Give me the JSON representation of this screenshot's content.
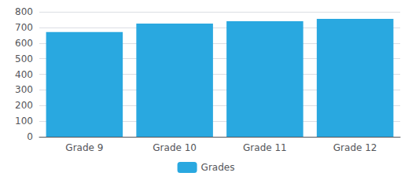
{
  "chart_data": {
    "type": "bar",
    "categories": [
      "Grade 9",
      "Grade 10",
      "Grade 11",
      "Grade 12"
    ],
    "series": [
      {
        "name": "Grades",
        "color": "#29a8e0",
        "values": [
          670,
          725,
          740,
          755
        ]
      }
    ],
    "ylim": [
      0,
      800
    ],
    "yticks": [
      0,
      100,
      200,
      300,
      400,
      500,
      600,
      700,
      800
    ],
    "grid": true,
    "legend": "bottom"
  }
}
